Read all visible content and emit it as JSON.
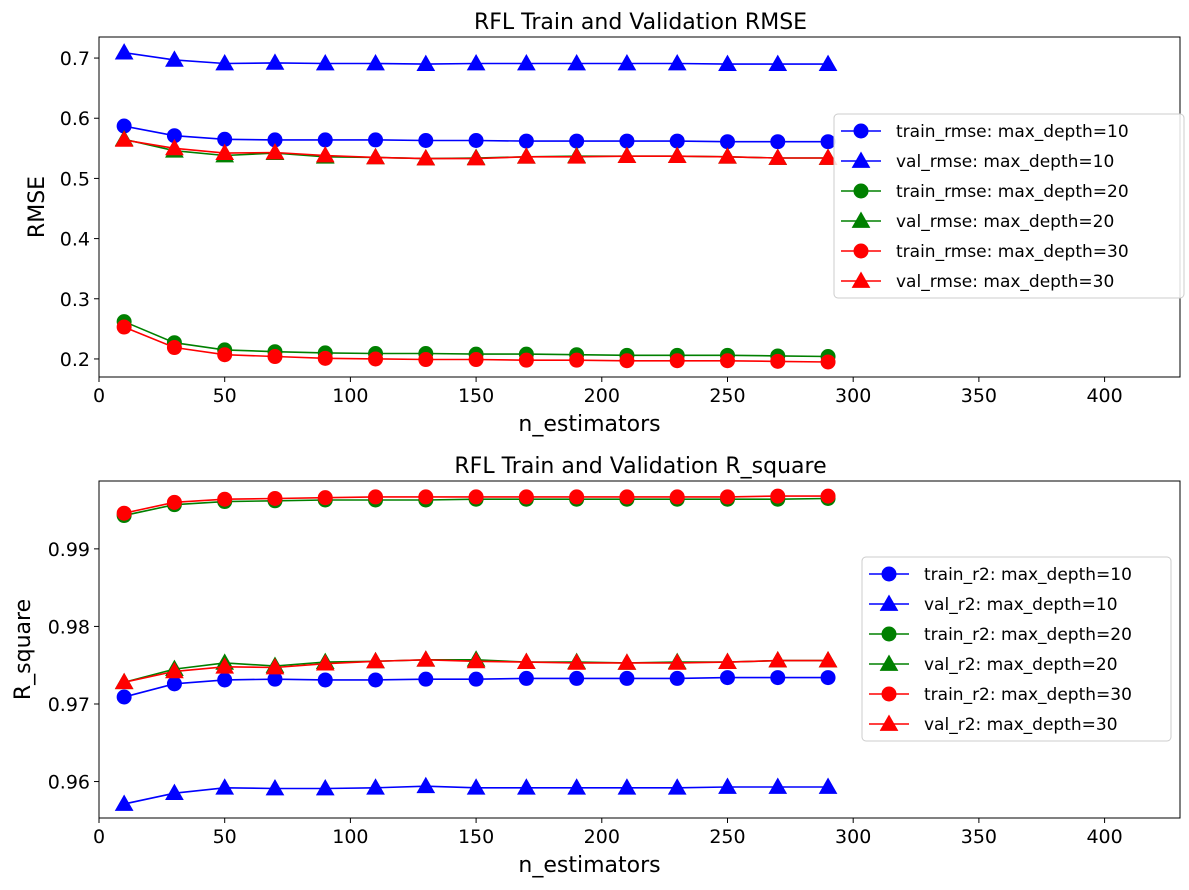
{
  "chart_data": [
    {
      "type": "line",
      "title": "RFL Train and Validation RMSE",
      "xlabel": "n_estimators",
      "ylabel": "RMSE",
      "xlim": [
        0,
        430
      ],
      "ylim": [
        0.17,
        0.735
      ],
      "xticks": [
        0,
        50,
        100,
        150,
        200,
        250,
        300,
        350,
        400
      ],
      "yticks": [
        0.2,
        0.3,
        0.4,
        0.5,
        0.6,
        0.7
      ],
      "ytick_decimals": 1,
      "grid": false,
      "legend_position": "center-right",
      "x": [
        10,
        30,
        50,
        70,
        90,
        110,
        130,
        150,
        170,
        190,
        210,
        230,
        250,
        270,
        290
      ],
      "series": [
        {
          "name": "train_rmse: max_depth=10",
          "color": "#0000ff",
          "marker": "circle",
          "values": [
            0.587,
            0.571,
            0.565,
            0.564,
            0.564,
            0.564,
            0.563,
            0.563,
            0.562,
            0.562,
            0.562,
            0.562,
            0.561,
            0.561,
            0.561
          ]
        },
        {
          "name": "val_rmse: max_depth=10",
          "color": "#0000ff",
          "marker": "triangle",
          "values": [
            0.709,
            0.697,
            0.691,
            0.692,
            0.691,
            0.691,
            0.69,
            0.691,
            0.691,
            0.691,
            0.691,
            0.691,
            0.69,
            0.69,
            0.69
          ]
        },
        {
          "name": "train_rmse: max_depth=20",
          "color": "#008000",
          "marker": "circle",
          "values": [
            0.262,
            0.227,
            0.215,
            0.212,
            0.21,
            0.209,
            0.209,
            0.208,
            0.208,
            0.207,
            0.206,
            0.206,
            0.206,
            0.205,
            0.204
          ]
        },
        {
          "name": "val_rmse: max_depth=20",
          "color": "#008000",
          "marker": "triangle",
          "values": [
            0.565,
            0.546,
            0.538,
            0.542,
            0.536,
            0.535,
            0.533,
            0.534,
            0.536,
            0.537,
            0.537,
            0.537,
            0.536,
            0.534,
            0.534
          ]
        },
        {
          "name": "train_rmse: max_depth=30",
          "color": "#ff0000",
          "marker": "circle",
          "values": [
            0.253,
            0.219,
            0.207,
            0.204,
            0.201,
            0.2,
            0.199,
            0.199,
            0.198,
            0.198,
            0.197,
            0.197,
            0.197,
            0.196,
            0.195
          ]
        },
        {
          "name": "val_rmse: max_depth=30",
          "color": "#ff0000",
          "marker": "triangle",
          "values": [
            0.564,
            0.55,
            0.542,
            0.543,
            0.538,
            0.535,
            0.533,
            0.533,
            0.536,
            0.536,
            0.537,
            0.537,
            0.536,
            0.534,
            0.534
          ]
        }
      ]
    },
    {
      "type": "line",
      "title": "RFL Train and Validation R_square",
      "xlabel": "n_estimators",
      "ylabel": "R_square",
      "xlim": [
        0,
        430
      ],
      "ylim": [
        0.9553,
        0.99875
      ],
      "xticks": [
        0,
        50,
        100,
        150,
        200,
        250,
        300,
        350,
        400
      ],
      "yticks": [
        0.96,
        0.97,
        0.98,
        0.99
      ],
      "ytick_decimals": 2,
      "grid": false,
      "legend_position": "center-right",
      "x": [
        10,
        30,
        50,
        70,
        90,
        110,
        130,
        150,
        170,
        190,
        210,
        230,
        250,
        270,
        290
      ],
      "series": [
        {
          "name": "train_r2: max_depth=10",
          "color": "#0000ff",
          "marker": "circle",
          "values": [
            0.9709,
            0.9726,
            0.9731,
            0.9732,
            0.9731,
            0.9731,
            0.9732,
            0.9732,
            0.9733,
            0.9733,
            0.9733,
            0.9733,
            0.9734,
            0.9734,
            0.9734
          ]
        },
        {
          "name": "val_r2: max_depth=10",
          "color": "#0000ff",
          "marker": "triangle",
          "values": [
            0.9571,
            0.9585,
            0.9592,
            0.9591,
            0.9591,
            0.9592,
            0.9594,
            0.9592,
            0.9592,
            0.9592,
            0.9592,
            0.9592,
            0.9593,
            0.9593,
            0.9593
          ]
        },
        {
          "name": "train_r2: max_depth=20",
          "color": "#008000",
          "marker": "circle",
          "values": [
            0.9943,
            0.9957,
            0.9961,
            0.9962,
            0.9963,
            0.9963,
            0.9963,
            0.9964,
            0.9964,
            0.9964,
            0.9964,
            0.9964,
            0.9964,
            0.9964,
            0.9965
          ]
        },
        {
          "name": "val_r2: max_depth=20",
          "color": "#008000",
          "marker": "triangle",
          "values": [
            0.9728,
            0.9745,
            0.9753,
            0.9749,
            0.9754,
            0.9755,
            0.9757,
            0.9757,
            0.9754,
            0.9754,
            0.9753,
            0.9754,
            0.9754,
            0.9756,
            0.9756
          ]
        },
        {
          "name": "train_r2: max_depth=30",
          "color": "#ff0000",
          "marker": "circle",
          "values": [
            0.9946,
            0.996,
            0.9964,
            0.9965,
            0.9966,
            0.9967,
            0.9967,
            0.9967,
            0.9967,
            0.9967,
            0.9967,
            0.9967,
            0.9967,
            0.9968,
            0.9968
          ]
        },
        {
          "name": "val_r2: max_depth=30",
          "color": "#ff0000",
          "marker": "triangle",
          "values": [
            0.9728,
            0.9742,
            0.9748,
            0.9747,
            0.9752,
            0.9755,
            0.9757,
            0.9755,
            0.9754,
            0.9753,
            0.9753,
            0.9753,
            0.9754,
            0.9756,
            0.9756
          ]
        }
      ]
    }
  ]
}
